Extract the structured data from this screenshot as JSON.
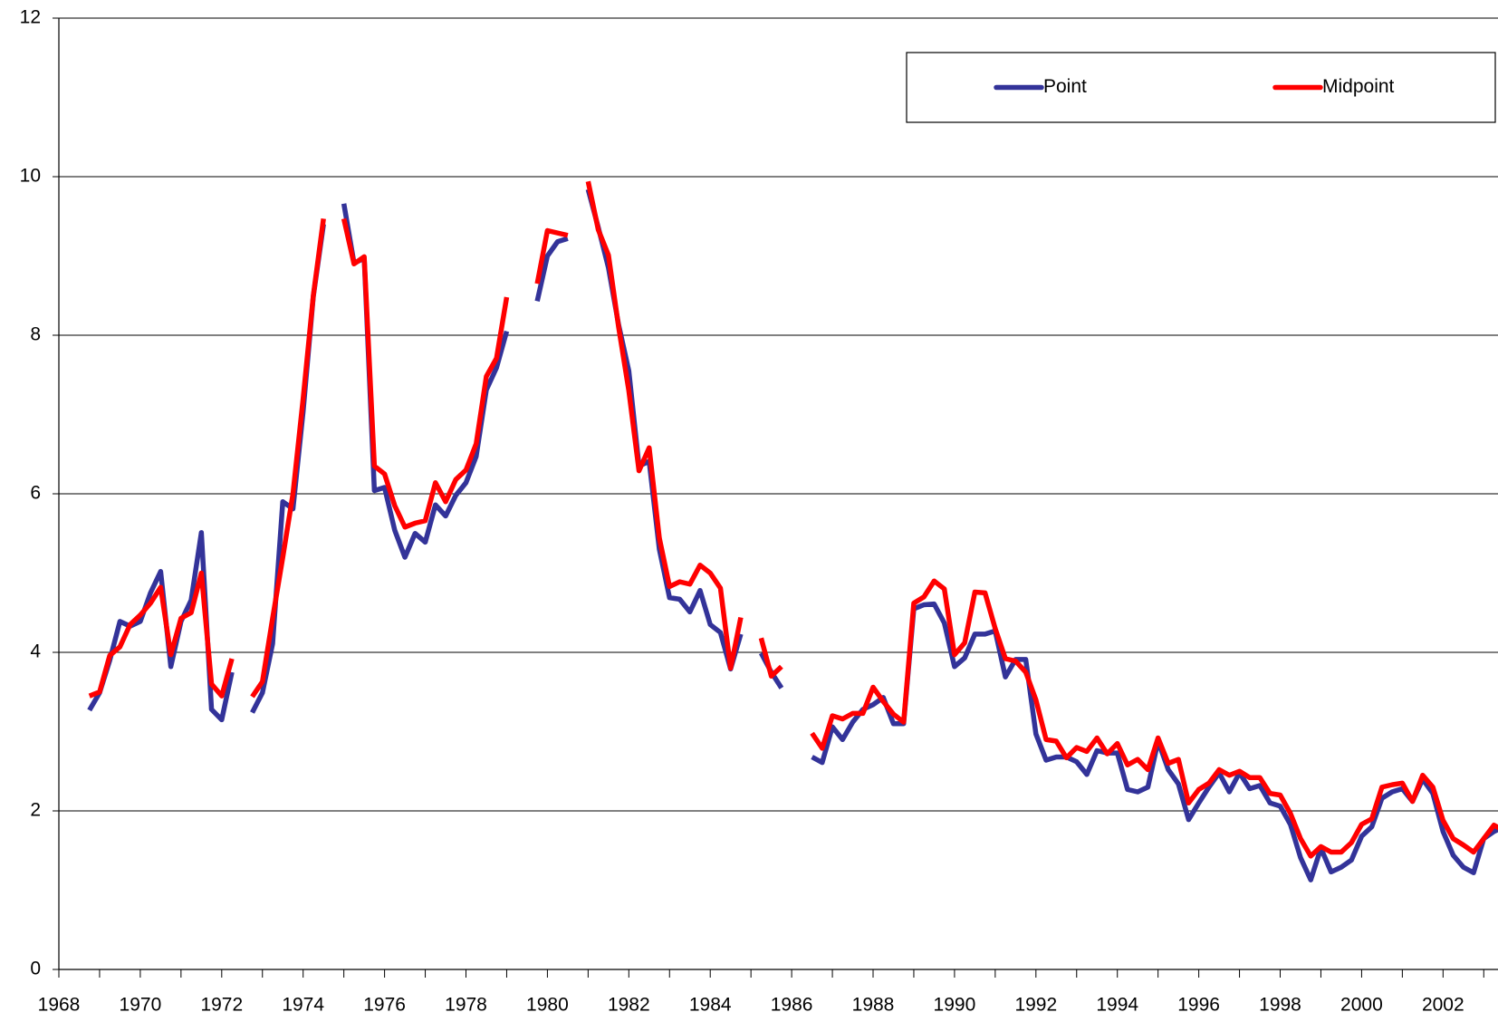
{
  "chart_data": {
    "type": "line",
    "x": [
      1968.75,
      1969,
      1969.25,
      1969.5,
      1969.75,
      1970,
      1970.25,
      1970.5,
      1970.75,
      1971,
      1971.25,
      1971.5,
      1971.75,
      1972,
      1972.25,
      1972.5,
      1972.75,
      1973,
      1973.25,
      1973.5,
      1973.75,
      1974,
      1974.25,
      1974.5,
      1974.75,
      1975,
      1975.25,
      1975.5,
      1975.75,
      1976,
      1976.25,
      1976.5,
      1976.75,
      1977,
      1977.25,
      1977.5,
      1977.75,
      1978,
      1978.25,
      1978.5,
      1978.75,
      1979,
      1979.25,
      1979.5,
      1979.75,
      1980,
      1980.25,
      1980.5,
      1980.75,
      1981,
      1981.25,
      1981.5,
      1981.75,
      1982,
      1982.25,
      1982.5,
      1982.75,
      1983,
      1983.25,
      1983.5,
      1983.75,
      1984,
      1984.25,
      1984.5,
      1984.75,
      1985,
      1985.25,
      1985.5,
      1985.75,
      1986,
      1986.25,
      1986.5,
      1986.75,
      1987,
      1987.25,
      1987.5,
      1987.75,
      1988,
      1988.25,
      1988.5,
      1988.75,
      1989,
      1989.25,
      1989.5,
      1989.75,
      1990,
      1990.25,
      1990.5,
      1990.75,
      1991,
      1991.25,
      1991.5,
      1991.75,
      1992,
      1992.25,
      1992.5,
      1992.75,
      1993,
      1993.25,
      1993.5,
      1993.75,
      1994,
      1994.25,
      1994.5,
      1994.75,
      1995,
      1995.25,
      1995.5,
      1995.75,
      1996,
      1996.25,
      1996.5,
      1996.75,
      1997,
      1997.25,
      1997.5,
      1997.75,
      1998,
      1998.25,
      1998.5,
      1998.75,
      1999,
      1999.25,
      1999.5,
      1999.75,
      2000,
      2000.25,
      2000.5,
      2000.75,
      2001,
      2001.25,
      2001.5,
      2001.75,
      2002,
      2002.25,
      2002.5,
      2002.75,
      2003,
      2003.25,
      2003.5
    ],
    "series": [
      {
        "name": "Point",
        "color": "#333399",
        "values": [
          3.27,
          3.49,
          3.9,
          4.39,
          4.33,
          4.39,
          4.75,
          5.02,
          3.82,
          4.39,
          4.66,
          5.51,
          3.28,
          3.15,
          3.75,
          null,
          3.24,
          3.49,
          4.11,
          5.9,
          5.81,
          7.04,
          8.49,
          9.4,
          null,
          9.66,
          8.91,
          8.97,
          6.04,
          6.08,
          5.54,
          5.2,
          5.5,
          5.39,
          5.86,
          5.72,
          5.98,
          6.14,
          6.47,
          7.31,
          7.59,
          8.05,
          null,
          null,
          8.43,
          9.0,
          9.18,
          9.22,
          null,
          9.84,
          9.36,
          8.85,
          8.13,
          7.55,
          6.35,
          6.41,
          5.3,
          4.69,
          4.67,
          4.51,
          4.78,
          4.35,
          4.25,
          3.79,
          4.23,
          null,
          3.99,
          3.75,
          3.55,
          null,
          null,
          2.68,
          2.61,
          3.06,
          2.9,
          3.12,
          3.28,
          3.34,
          3.43,
          3.1,
          3.1,
          4.55,
          4.6,
          4.61,
          4.37,
          3.82,
          3.93,
          4.23,
          4.23,
          4.27,
          3.69,
          3.91,
          3.91,
          2.97,
          2.64,
          2.68,
          2.68,
          2.62,
          2.46,
          2.76,
          2.73,
          2.73,
          2.27,
          2.24,
          2.3,
          2.88,
          2.52,
          2.34,
          1.89,
          2.1,
          2.3,
          2.48,
          2.24,
          2.48,
          2.28,
          2.32,
          2.1,
          2.06,
          1.83,
          1.41,
          1.13,
          1.53,
          1.23,
          1.29,
          1.38,
          1.68,
          1.8,
          2.16,
          2.24,
          2.28,
          2.12,
          2.4,
          2.22,
          1.74,
          1.44,
          1.29,
          1.22,
          1.65,
          1.74,
          1.8
        ]
      },
      {
        "name": "Midpoint",
        "color": "#ff0000",
        "values": [
          3.45,
          3.5,
          3.96,
          4.07,
          4.35,
          4.47,
          4.62,
          4.82,
          3.97,
          4.43,
          4.5,
          5.0,
          3.6,
          3.45,
          3.92,
          null,
          3.44,
          3.63,
          4.43,
          5.2,
          6.0,
          7.2,
          8.5,
          9.47,
          null,
          9.47,
          8.9,
          8.99,
          6.35,
          6.25,
          5.85,
          5.58,
          5.63,
          5.66,
          6.14,
          5.9,
          6.18,
          6.3,
          6.63,
          7.48,
          7.71,
          8.48,
          null,
          null,
          8.65,
          9.32,
          9.29,
          9.26,
          null,
          9.94,
          9.33,
          9.01,
          8.1,
          7.3,
          6.29,
          6.58,
          5.44,
          4.83,
          4.89,
          4.86,
          5.1,
          5.0,
          4.81,
          3.8,
          4.44,
          null,
          4.18,
          3.7,
          3.82,
          null,
          null,
          2.98,
          2.79,
          3.2,
          3.16,
          3.23,
          3.23,
          3.56,
          3.38,
          3.22,
          3.12,
          4.62,
          4.7,
          4.9,
          4.8,
          3.97,
          4.12,
          4.76,
          4.75,
          4.3,
          3.92,
          3.89,
          3.75,
          3.4,
          2.9,
          2.88,
          2.67,
          2.8,
          2.75,
          2.92,
          2.72,
          2.85,
          2.58,
          2.65,
          2.52,
          2.92,
          2.6,
          2.65,
          2.1,
          2.27,
          2.35,
          2.52,
          2.45,
          2.5,
          2.42,
          2.42,
          2.22,
          2.2,
          1.97,
          1.65,
          1.43,
          1.55,
          1.48,
          1.48,
          1.6,
          1.83,
          1.9,
          2.3,
          2.33,
          2.35,
          2.12,
          2.45,
          2.3,
          1.88,
          1.65,
          1.57,
          1.48,
          1.65,
          1.82,
          1.75
        ]
      }
    ],
    "xlim": [
      1968,
      2003.35
    ],
    "xticks": [
      1968,
      1970,
      1972,
      1974,
      1976,
      1978,
      1980,
      1982,
      1984,
      1986,
      1988,
      1990,
      1992,
      1994,
      1996,
      1998,
      2000,
      2002
    ],
    "xminorticks": [
      1969,
      1971,
      1973,
      1975,
      1977,
      1979,
      1981,
      1983,
      1985,
      1987,
      1989,
      1991,
      1993,
      1995,
      1997,
      1999,
      2001,
      2003
    ],
    "ylim": [
      0,
      12
    ],
    "yticks": [
      0,
      2,
      4,
      6,
      8,
      10,
      12
    ],
    "grid": true,
    "legend": "top-right"
  }
}
